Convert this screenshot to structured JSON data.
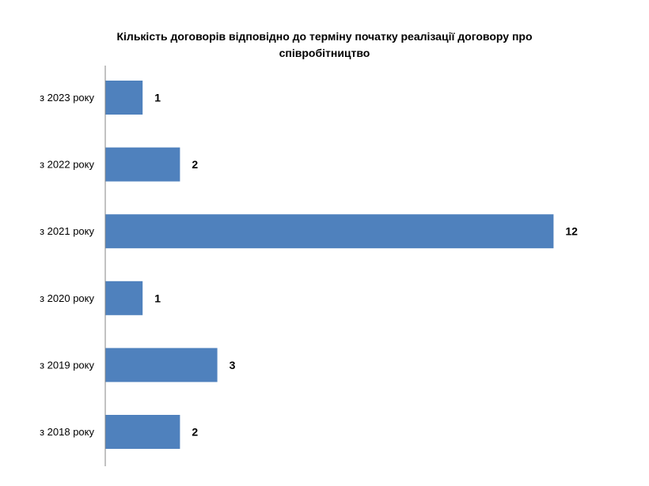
{
  "chart_data": {
    "type": "bar",
    "orientation": "horizontal",
    "title": "Кількість договорів  відповідно  до терміну початку  реалізації договору про співробітництво",
    "xlabel": "",
    "ylabel": "",
    "categories": [
      "з 2023 року",
      "з 2022 року",
      "з 2021 року",
      "з 2020 року",
      "з 2019 року",
      "з 2018 року"
    ],
    "values": [
      1,
      2,
      12,
      1,
      3,
      2
    ],
    "xlim": [
      0,
      13
    ],
    "grid": false,
    "legend": "none",
    "bar_color": "#4F81BD",
    "axis_color": "#868686"
  }
}
